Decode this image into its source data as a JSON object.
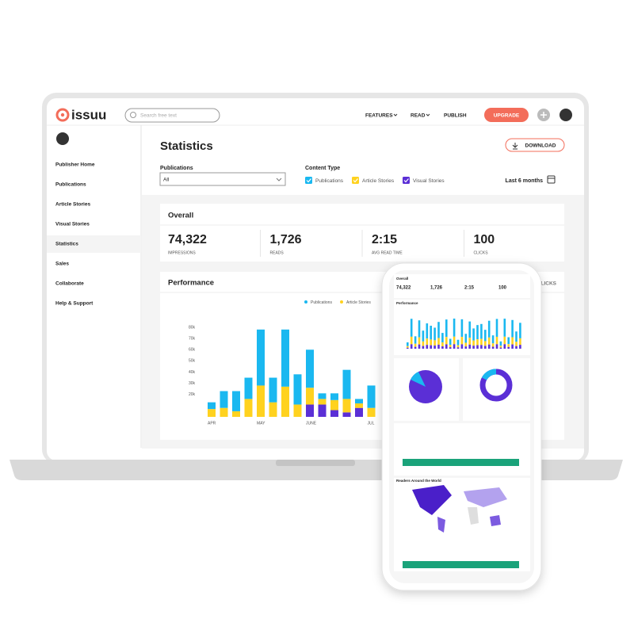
{
  "header": {
    "logo": "issuu",
    "search_placeholder": "Search free text",
    "nav": [
      "FEATURES",
      "READ",
      "PUBLISH"
    ],
    "upgrade": "UPGRADE"
  },
  "sidebar": {
    "items": [
      "Publisher Home",
      "Publications",
      "Article Stories",
      "Visual Stories",
      "Statistics",
      "Sales",
      "Collaborate",
      "Help & Support"
    ],
    "active": 4
  },
  "page": {
    "title": "Statistics",
    "download": "DOWNLOAD",
    "publications_label": "Publications",
    "publications_value": "All",
    "content_type_label": "Content Type",
    "content_types": [
      "Publications",
      "Article Stories",
      "Visual Stories"
    ],
    "period": "Last 6 months"
  },
  "overall": {
    "title": "Overall",
    "metrics": [
      {
        "value": "74,322",
        "label": "IMPRESSIONS"
      },
      {
        "value": "1,726",
        "label": "READS"
      },
      {
        "value": "2:15",
        "label": "AVG READ TIME"
      },
      {
        "value": "100",
        "label": "CLICKS"
      }
    ]
  },
  "performance": {
    "title": "Performance",
    "tab": "CLICKS",
    "chart_data": {
      "type": "bar",
      "stacked": true,
      "categories": [
        "APR",
        null,
        null,
        null,
        "MAY",
        null,
        null,
        null,
        "JUNE",
        null,
        null,
        null,
        null,
        "JUL"
      ],
      "series": [
        {
          "name": "Visual Stories",
          "color": "#5b2fd6",
          "values": [
            0,
            0,
            0,
            0,
            0,
            0,
            0,
            0,
            11,
            11,
            6,
            4,
            8,
            0
          ]
        },
        {
          "name": "Article Stories",
          "color": "#ffd21f",
          "values": [
            7,
            8,
            5,
            16,
            28,
            13,
            27,
            11,
            15,
            5,
            9,
            12,
            4,
            8
          ]
        },
        {
          "name": "Publications",
          "color": "#1ab8f0",
          "values": [
            6,
            15,
            18,
            19,
            50,
            22,
            51,
            27,
            34,
            5,
            6,
            26,
            4,
            20
          ]
        }
      ],
      "legend": [
        "Publications",
        "Article Stories"
      ],
      "ylim": [
        0,
        80
      ],
      "yticks": [
        {
          "value": 20,
          "label": "20k"
        },
        {
          "value": 30,
          "label": "30k"
        },
        {
          "value": 40,
          "label": "40k"
        },
        {
          "value": 50,
          "label": "50k"
        },
        {
          "value": 60,
          "label": "60k"
        },
        {
          "value": 70,
          "label": "70k"
        },
        {
          "value": 80,
          "label": "80k"
        }
      ]
    }
  },
  "phone": {
    "sections": [
      "Overall",
      "Performance",
      "Readers Around the World"
    ]
  }
}
